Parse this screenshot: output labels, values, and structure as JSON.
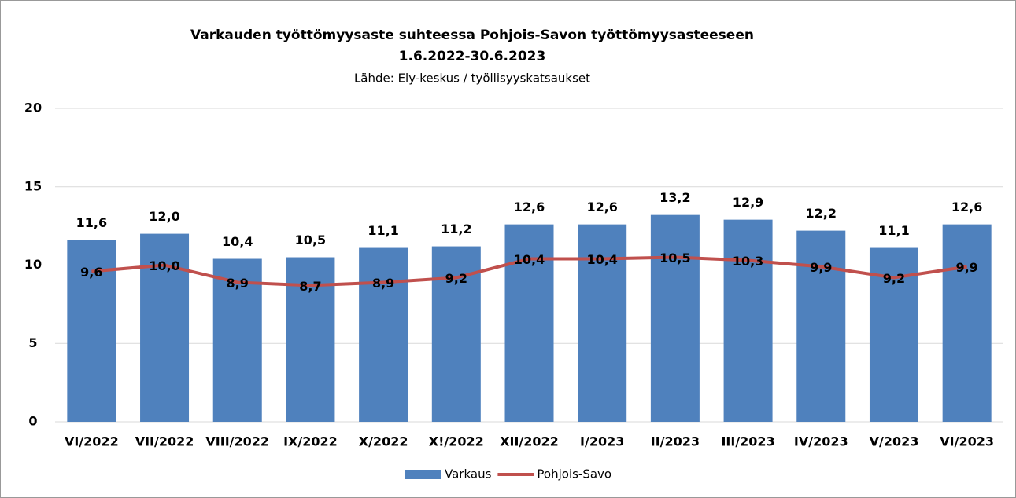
{
  "chart_data": {
    "type": "combo",
    "title": [
      "Varkauden työttömyysaste suhteessa Pohjois-Savon työttömyysasteeseen",
      "1.6.2022-30.6.2023"
    ],
    "subtitle": "Lähde: Ely-keskus / työllisyyskatsaukset",
    "categories": [
      "VI/2022",
      "VII/2022",
      "VIII/2022",
      "IX/2022",
      "X/2022",
      "X!/2022",
      "XII/2022",
      "I/2023",
      "II/2023",
      "III/2023",
      "IV/2023",
      "V/2023",
      "VI/2023"
    ],
    "series": [
      {
        "name": "Varkaus",
        "type": "bar",
        "color": "#4f81bd",
        "values": [
          11.6,
          12.0,
          10.4,
          10.5,
          11.1,
          11.2,
          12.6,
          12.6,
          13.2,
          12.9,
          12.2,
          11.1,
          12.6
        ],
        "value_labels": [
          "11,6",
          "12,0",
          "10,4",
          "10,5",
          "11,1",
          "11,2",
          "12,6",
          "12,6",
          "13,2",
          "12,9",
          "12,2",
          "11,1",
          "12,6"
        ]
      },
      {
        "name": "Pohjois-Savo",
        "type": "line",
        "color": "#c0504d",
        "values": [
          9.6,
          10.0,
          8.9,
          8.7,
          8.9,
          9.2,
          10.4,
          10.4,
          10.5,
          10.3,
          9.9,
          9.2,
          9.9
        ],
        "value_labels": [
          "9,6",
          "10,0",
          "8,9",
          "8,7",
          "8,9",
          "9,2",
          "10,4",
          "10,4",
          "10,5",
          "10,3",
          "9,9",
          "9,2",
          "9,9"
        ]
      }
    ],
    "ylim": [
      0,
      20
    ],
    "yticks": [
      0,
      5,
      10,
      15,
      20
    ],
    "grid": true,
    "legend": "bottom"
  }
}
